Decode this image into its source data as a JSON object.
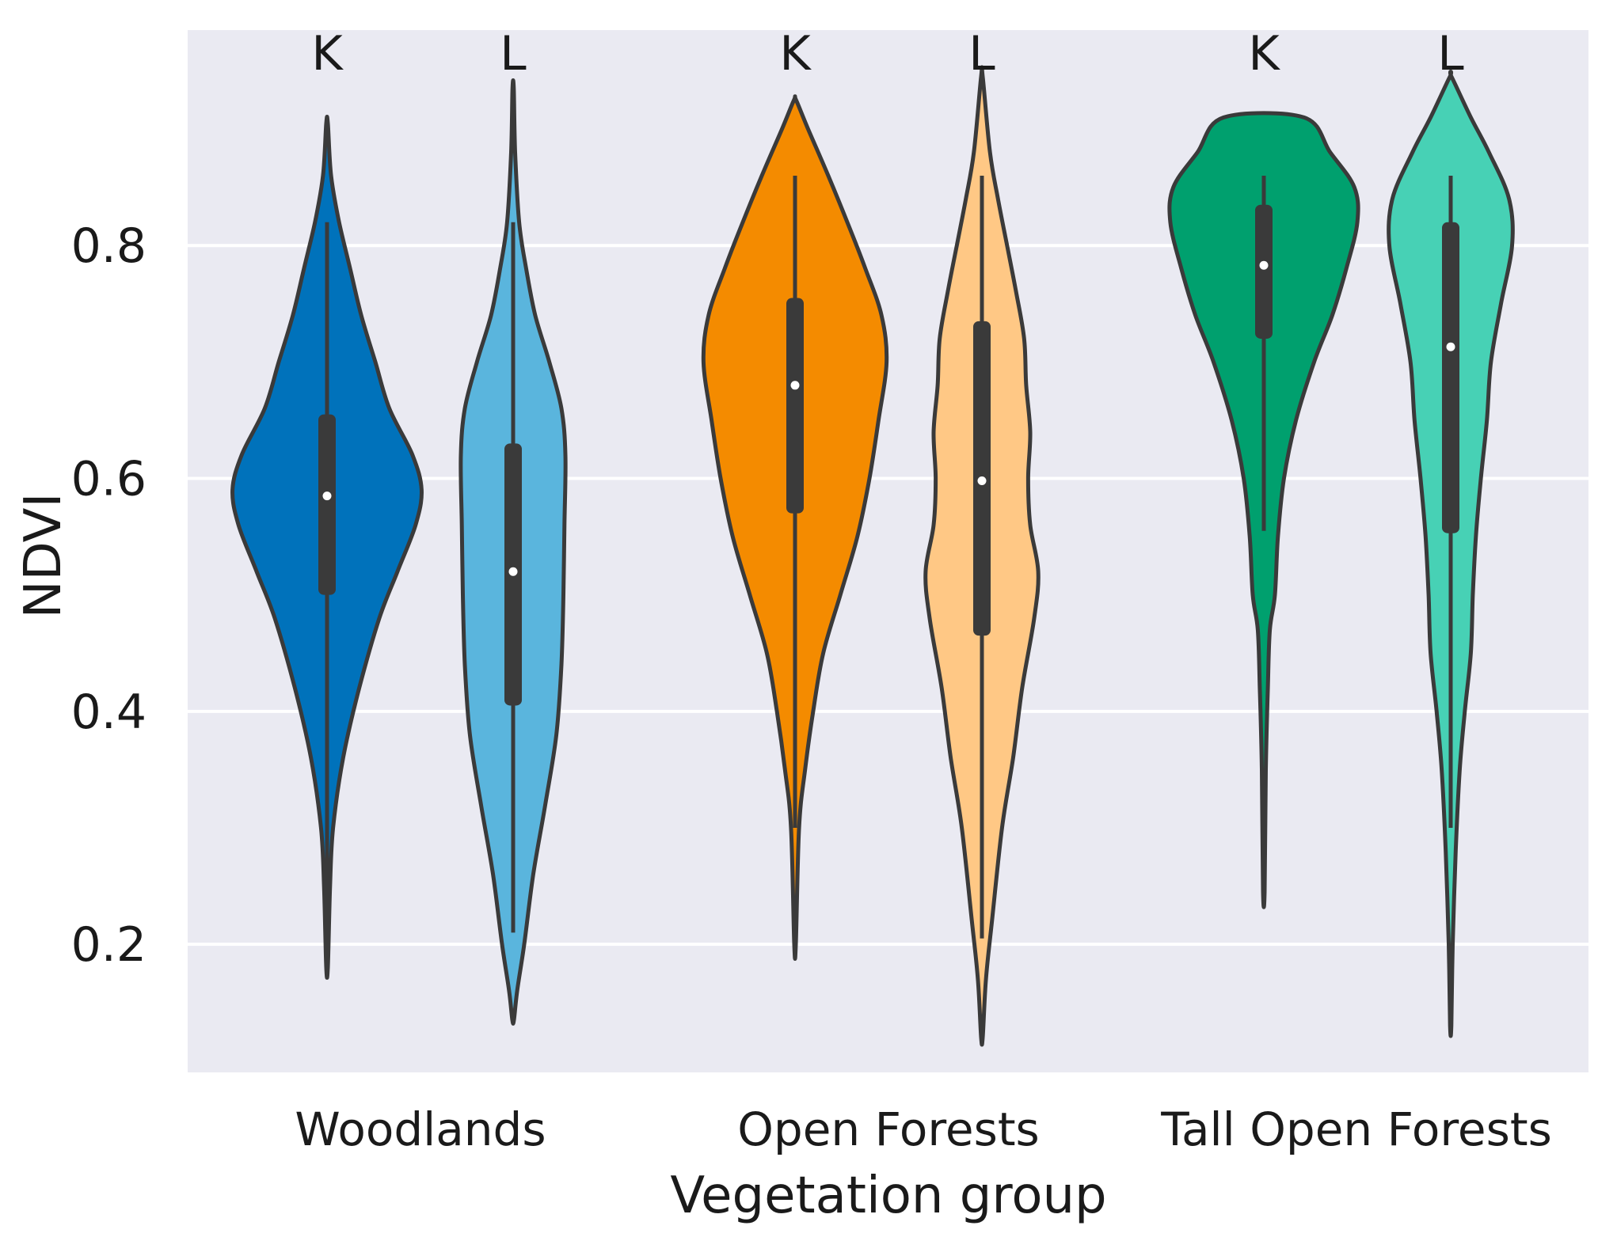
{
  "chart_data": {
    "type": "violin",
    "xlabel": "Vegetation group",
    "ylabel": "NDVI",
    "ylim": [
      0.09,
      0.985
    ],
    "yticks": [
      "0.2",
      "0.4",
      "0.6",
      "0.8"
    ],
    "grid": true,
    "categories": [
      "Woodlands",
      "Open Forests",
      "Tall Open Forests"
    ],
    "series": [
      {
        "category": "Woodlands",
        "letter": "K",
        "color": "#0072bb",
        "min": 0.18,
        "q1": 0.5,
        "median": 0.585,
        "q3": 0.655,
        "whisker_low": 0.18,
        "whisker_high": 0.82,
        "max": 0.905,
        "profile": [
          [
            0.18,
            0.008
          ],
          [
            0.25,
            0.03
          ],
          [
            0.3,
            0.06
          ],
          [
            0.36,
            0.16
          ],
          [
            0.42,
            0.32
          ],
          [
            0.48,
            0.52
          ],
          [
            0.52,
            0.7
          ],
          [
            0.56,
            0.88
          ],
          [
            0.59,
            0.94
          ],
          [
            0.62,
            0.85
          ],
          [
            0.66,
            0.62
          ],
          [
            0.7,
            0.48
          ],
          [
            0.74,
            0.34
          ],
          [
            0.78,
            0.23
          ],
          [
            0.82,
            0.12
          ],
          [
            0.86,
            0.04
          ],
          [
            0.905,
            0.008
          ]
        ]
      },
      {
        "category": "Woodlands",
        "letter": "L",
        "color": "#5ab5dd",
        "min": 0.135,
        "q1": 0.405,
        "median": 0.52,
        "q3": 0.63,
        "whisker_low": 0.21,
        "whisker_high": 0.82,
        "max": 0.935,
        "profile": [
          [
            0.135,
            0.008
          ],
          [
            0.16,
            0.04
          ],
          [
            0.2,
            0.11
          ],
          [
            0.26,
            0.2
          ],
          [
            0.32,
            0.32
          ],
          [
            0.38,
            0.43
          ],
          [
            0.44,
            0.48
          ],
          [
            0.5,
            0.5
          ],
          [
            0.56,
            0.51
          ],
          [
            0.62,
            0.52
          ],
          [
            0.66,
            0.48
          ],
          [
            0.7,
            0.36
          ],
          [
            0.74,
            0.22
          ],
          [
            0.78,
            0.13
          ],
          [
            0.82,
            0.06
          ],
          [
            0.88,
            0.02
          ],
          [
            0.935,
            0.006
          ]
        ]
      },
      {
        "category": "Open Forests",
        "letter": "K",
        "color": "#f48b00",
        "min": 0.2,
        "q1": 0.57,
        "median": 0.68,
        "q3": 0.755,
        "whisker_low": 0.3,
        "whisker_high": 0.86,
        "max": 0.925,
        "profile": [
          [
            0.2,
            0.008
          ],
          [
            0.3,
            0.04
          ],
          [
            0.35,
            0.1
          ],
          [
            0.4,
            0.18
          ],
          [
            0.45,
            0.28
          ],
          [
            0.5,
            0.45
          ],
          [
            0.55,
            0.62
          ],
          [
            0.6,
            0.74
          ],
          [
            0.65,
            0.83
          ],
          [
            0.7,
            0.91
          ],
          [
            0.74,
            0.86
          ],
          [
            0.78,
            0.7
          ],
          [
            0.82,
            0.52
          ],
          [
            0.86,
            0.33
          ],
          [
            0.9,
            0.13
          ],
          [
            0.925,
            0.01
          ]
        ]
      },
      {
        "category": "Open Forests",
        "letter": "L",
        "color": "#ffc885",
        "min": 0.12,
        "q1": 0.465,
        "median": 0.598,
        "q3": 0.735,
        "whisker_low": 0.205,
        "whisker_high": 0.86,
        "max": 0.945,
        "profile": [
          [
            0.12,
            0.008
          ],
          [
            0.17,
            0.04
          ],
          [
            0.22,
            0.1
          ],
          [
            0.3,
            0.2
          ],
          [
            0.36,
            0.31
          ],
          [
            0.42,
            0.4
          ],
          [
            0.48,
            0.52
          ],
          [
            0.52,
            0.56
          ],
          [
            0.56,
            0.48
          ],
          [
            0.6,
            0.46
          ],
          [
            0.64,
            0.48
          ],
          [
            0.68,
            0.44
          ],
          [
            0.72,
            0.42
          ],
          [
            0.76,
            0.34
          ],
          [
            0.8,
            0.25
          ],
          [
            0.84,
            0.16
          ],
          [
            0.88,
            0.08
          ],
          [
            0.945,
            0.008
          ]
        ]
      },
      {
        "category": "Tall Open Forests",
        "letter": "K",
        "color": "#00a06e",
        "min": 0.245,
        "q1": 0.72,
        "median": 0.783,
        "q3": 0.835,
        "whisker_low": 0.555,
        "whisker_high": 0.86,
        "max": 0.91,
        "profile": [
          [
            0.245,
            0.008
          ],
          [
            0.35,
            0.02
          ],
          [
            0.42,
            0.04
          ],
          [
            0.47,
            0.06
          ],
          [
            0.5,
            0.11
          ],
          [
            0.55,
            0.14
          ],
          [
            0.6,
            0.2
          ],
          [
            0.65,
            0.32
          ],
          [
            0.7,
            0.5
          ],
          [
            0.74,
            0.68
          ],
          [
            0.78,
            0.82
          ],
          [
            0.82,
            0.93
          ],
          [
            0.85,
            0.9
          ],
          [
            0.88,
            0.66
          ],
          [
            0.91,
            0.4
          ]
        ]
      },
      {
        "category": "Tall Open Forests",
        "letter": "L",
        "color": "#47d1b5",
        "min": 0.13,
        "q1": 0.553,
        "median": 0.713,
        "q3": 0.82,
        "whisker_low": 0.3,
        "whisker_high": 0.86,
        "max": 0.945,
        "profile": [
          [
            0.13,
            0.006
          ],
          [
            0.2,
            0.02
          ],
          [
            0.28,
            0.05
          ],
          [
            0.35,
            0.09
          ],
          [
            0.4,
            0.14
          ],
          [
            0.45,
            0.2
          ],
          [
            0.5,
            0.22
          ],
          [
            0.55,
            0.25
          ],
          [
            0.6,
            0.3
          ],
          [
            0.65,
            0.36
          ],
          [
            0.7,
            0.4
          ],
          [
            0.75,
            0.5
          ],
          [
            0.8,
            0.61
          ],
          [
            0.84,
            0.58
          ],
          [
            0.88,
            0.38
          ],
          [
            0.91,
            0.2
          ],
          [
            0.945,
            0.008
          ]
        ]
      }
    ]
  }
}
